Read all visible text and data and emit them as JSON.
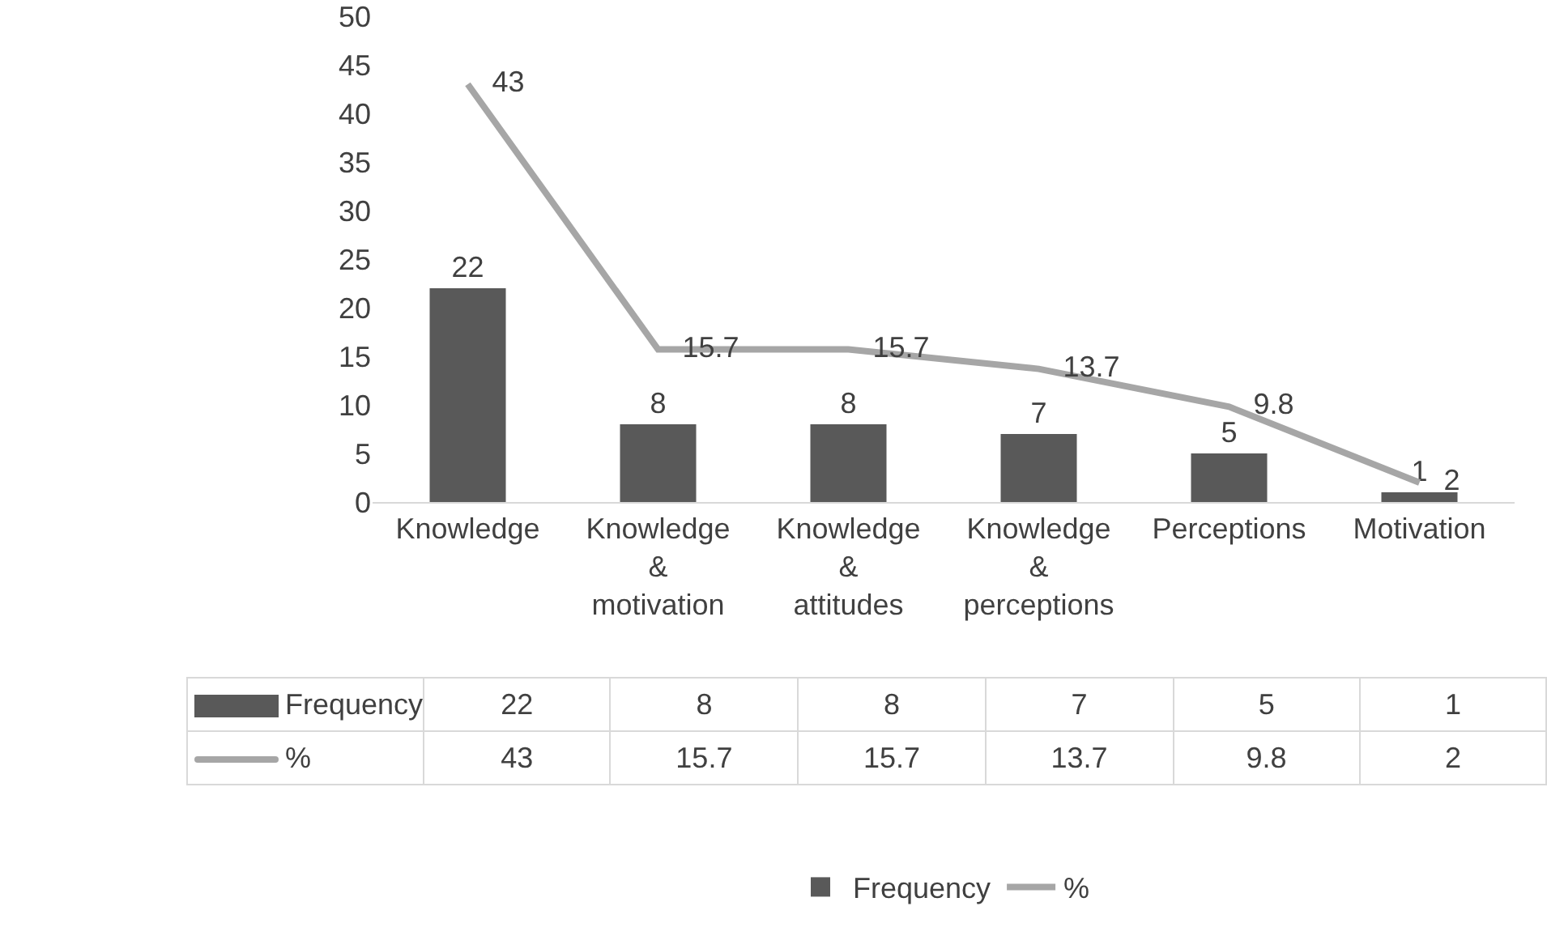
{
  "chart_data": {
    "type": "bar",
    "categories": [
      "Knowledge",
      "Knowledge & motivation",
      "Knowledge & attitudes",
      "Knowledge & perceptions",
      "Perceptions",
      "Motivation"
    ],
    "series": [
      {
        "name": "Frequency",
        "color": "#595959",
        "values": [
          22,
          8,
          8,
          7,
          5,
          1
        ],
        "value_labels": [
          "22",
          "8",
          "8",
          "7",
          "5",
          "1"
        ]
      },
      {
        "name": "%",
        "type": "line",
        "color": "#a6a6a6",
        "values": [
          43,
          15.7,
          15.7,
          13.7,
          9.8,
          2
        ],
        "value_labels": [
          "43",
          "15.7",
          "15.7",
          "13.7",
          "9.8",
          "2"
        ]
      }
    ],
    "ylim": [
      0,
      50
    ],
    "yticks": [
      0,
      5,
      10,
      15,
      20,
      25,
      30,
      35,
      40,
      45,
      50
    ],
    "grid": false,
    "legend": "bottom",
    "marker": "none",
    "line_style": "solid",
    "data_labels": true
  }
}
